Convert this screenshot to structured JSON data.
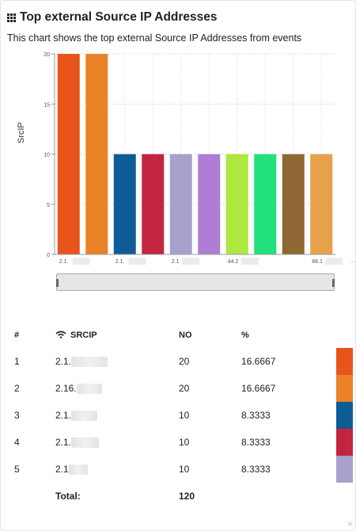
{
  "panel": {
    "title": "Top external Source IP Addresses",
    "description": "This chart shows the top external Source IP Addresses from events",
    "title_icon": "grid-icon"
  },
  "chart_data": {
    "type": "bar",
    "ylabel": "SrcIP",
    "xlabel": "",
    "ylim": [
      0,
      20
    ],
    "yticks": [
      0,
      5,
      10,
      15,
      20
    ],
    "grid": true,
    "categories": [
      "2.1.",
      "2.16.",
      "2.1.",
      "2.1.",
      "2.1",
      "",
      "44.2",
      "",
      "",
      "88.12"
    ],
    "tick_labels": [
      "2.1.",
      "2.1.",
      "2.1",
      "44.2",
      "88.1"
    ],
    "values": [
      20,
      20,
      10,
      10,
      10,
      10,
      10,
      10,
      10,
      10
    ],
    "colors": [
      "#e8551a",
      "#ec8228",
      "#0e5c96",
      "#c3253e",
      "#a6a2cb",
      "#af7ed4",
      "#ade840",
      "#22e07a",
      "#8f6732",
      "#e8a14b"
    ]
  },
  "table": {
    "headers": {
      "rank": "#",
      "srcip": "SRCIP",
      "count": "NO",
      "percent": "%"
    },
    "srcip_icon": "wifi-icon",
    "rows": [
      {
        "rank": "1",
        "ip": "2.1.",
        "no": "20",
        "pct": "16.6667",
        "color": "#e8551a"
      },
      {
        "rank": "2",
        "ip": "2.16.",
        "no": "20",
        "pct": "16.6667",
        "color": "#ec8228"
      },
      {
        "rank": "3",
        "ip": "2.1.",
        "no": "10",
        "pct": "8.3333",
        "color": "#0e5c96"
      },
      {
        "rank": "4",
        "ip": "2.1.",
        "no": "10",
        "pct": "8.3333",
        "color": "#c3253e"
      },
      {
        "rank": "5",
        "ip": "2.1",
        "no": "10",
        "pct": "8.3333",
        "color": "#a6a2cb"
      }
    ],
    "total_label": "Total:",
    "total_value": "120"
  }
}
